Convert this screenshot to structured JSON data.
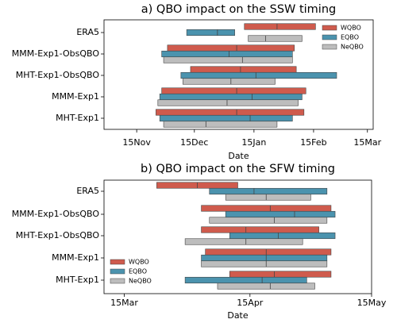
{
  "chart_data": [
    {
      "type": "range-box",
      "title": "a)  QBO impact on the SSW timing",
      "x_label": "Date",
      "categories": [
        "ERA5",
        "MMM-Exp1-ObsQBO",
        "MHT-Exp1-ObsQBO",
        "MMM-Exp1",
        "MHT-Exp1"
      ],
      "xlim": [
        "10-29",
        "03-18"
      ],
      "xticks": [
        {
          "value": "11-15",
          "label": "15Nov"
        },
        {
          "value": "12-15",
          "label": "15Dec"
        },
        {
          "value": "01-15",
          "label": "15Jan"
        },
        {
          "value": "02-15",
          "label": "15Feb"
        },
        {
          "value": "03-15",
          "label": "15Mar"
        }
      ],
      "legend": "upper right",
      "series": [
        {
          "name": "WQBO",
          "color": "#cf5b4d",
          "values": [
            [
              "01-10",
              "01-27",
              "02-16"
            ],
            [
              "12-01",
              "01-06",
              "02-05"
            ],
            [
              "12-13",
              "01-08",
              "02-06"
            ],
            [
              "11-28",
              "01-06",
              "02-11"
            ],
            [
              "11-25",
              "01-06",
              "02-10"
            ]
          ]
        },
        {
          "name": "EQBO",
          "color": "#4b93ae",
          "values": [
            [
              "12-11",
              "12-27",
              "01-05"
            ],
            [
              "11-28",
              "01-02",
              "02-04"
            ],
            [
              "12-08",
              "01-16",
              "02-27"
            ],
            [
              "11-27",
              "01-14",
              "02-09"
            ],
            [
              "11-27",
              "01-13",
              "02-04"
            ]
          ]
        },
        {
          "name": "NeQBO",
          "color": "#bdbdbd",
          "values": [
            [
              "01-12",
              "01-21",
              "02-09"
            ],
            [
              "11-29",
              "01-09",
              "02-04"
            ],
            [
              "12-09",
              "01-03",
              "01-26"
            ],
            [
              "11-26",
              "01-01",
              "02-07"
            ],
            [
              "11-29",
              "12-21",
              "01-27"
            ]
          ]
        }
      ]
    },
    {
      "type": "range-box",
      "title": "b)  QBO impact on the SFW timing",
      "x_label": "Date",
      "categories": [
        "ERA5",
        "MMM-Exp1-ObsQBO",
        "MHT-Exp1-ObsQBO",
        "MMM-Exp1",
        "MHT-Exp1"
      ],
      "xlim": [
        "03-10",
        "05-15"
      ],
      "xticks": [
        {
          "value": "03-15",
          "label": "15Mar"
        },
        {
          "value": "04-15",
          "label": "15Apr"
        },
        {
          "value": "05-15",
          "label": "15May"
        }
      ],
      "legend": "lower left",
      "series": [
        {
          "name": "WQBO",
          "color": "#cf5b4d",
          "values": [
            [
              "03-23",
              "04-02",
              "04-12"
            ],
            [
              "04-03",
              "04-20",
              "05-05"
            ],
            [
              "04-03",
              "04-14",
              "05-02"
            ],
            [
              "04-04",
              "04-19",
              "05-05"
            ],
            [
              "04-10",
              "04-21",
              "05-05"
            ]
          ]
        },
        {
          "name": "EQBO",
          "color": "#4b93ae",
          "values": [
            [
              "04-05",
              "04-16",
              "05-04"
            ],
            [
              "04-09",
              "04-26",
              "05-06"
            ],
            [
              "04-10",
              "04-22",
              "05-06"
            ],
            [
              "04-03",
              "04-19",
              "05-04"
            ],
            [
              "03-30",
              "04-18",
              "04-29"
            ]
          ]
        },
        {
          "name": "NeQBO",
          "color": "#bdbdbd",
          "values": [
            [
              "04-09",
              "04-19",
              "04-30"
            ],
            [
              "04-05",
              "04-21",
              "05-04"
            ],
            [
              "03-30",
              "04-14",
              "04-28"
            ],
            [
              "04-03",
              "04-19",
              "05-04"
            ],
            [
              "04-07",
              "04-20",
              "05-01"
            ]
          ]
        }
      ]
    }
  ]
}
